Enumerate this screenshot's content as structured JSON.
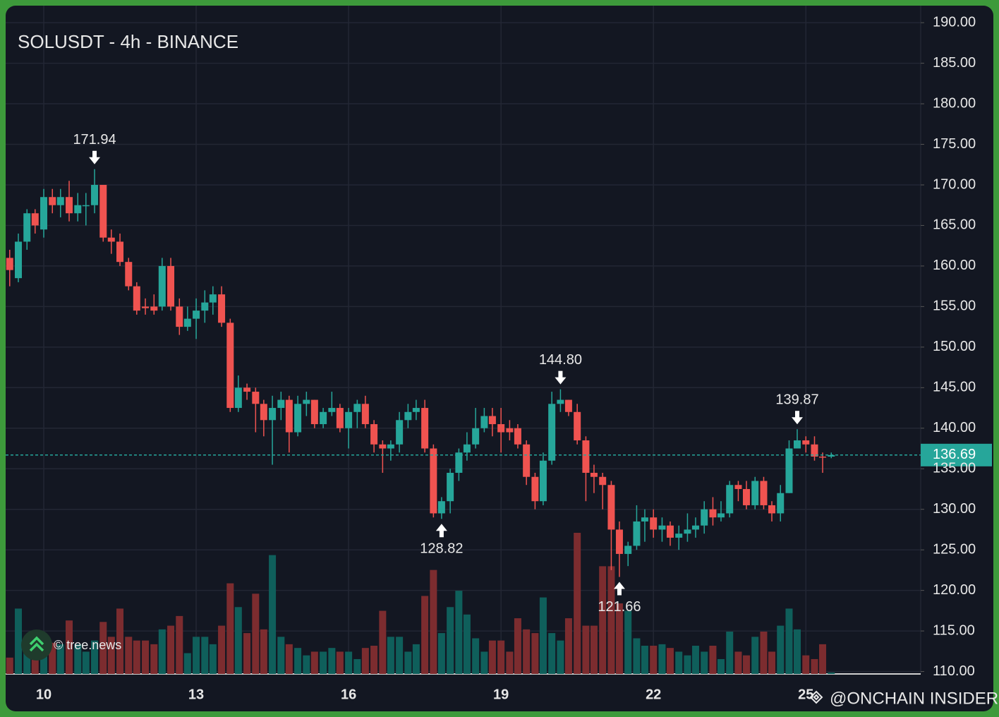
{
  "chart_data": {
    "type": "candlestick",
    "title": "SOLUSDT - 4h - BINANCE",
    "up_color": "#26a69a",
    "down_color": "#ef5350",
    "volume_up_color": "#0f5f5b",
    "volume_down_color": "#7c2c2f",
    "grid": true,
    "x": [
      9.33,
      9.5,
      9.67,
      9.83,
      10,
      10.17,
      10.33,
      10.5,
      10.67,
      10.83,
      11,
      11.17,
      11.33,
      11.5,
      11.67,
      11.83,
      12,
      12.17,
      12.33,
      12.5,
      12.67,
      12.83,
      13,
      13.17,
      13.33,
      13.5,
      13.67,
      13.83,
      14,
      14.17,
      14.33,
      14.5,
      14.67,
      14.83,
      15,
      15.17,
      15.33,
      15.5,
      15.67,
      15.83,
      16,
      16.17,
      16.33,
      16.5,
      16.67,
      16.83,
      17,
      17.17,
      17.33,
      17.5,
      17.67,
      17.83,
      18,
      18.17,
      18.33,
      18.5,
      18.67,
      18.83,
      19,
      19.17,
      19.33,
      19.5,
      19.67,
      19.83,
      20,
      20.17,
      20.33,
      20.5,
      20.67,
      20.83,
      21,
      21.17,
      21.33,
      21.5,
      21.67,
      21.83,
      22,
      22.17,
      22.33,
      22.5,
      22.67,
      22.83,
      23,
      23.17,
      23.33,
      23.5,
      23.67,
      23.83,
      24,
      24.17,
      24.33,
      24.5,
      24.67,
      24.83,
      25,
      25.17,
      25.33,
      25.5
    ],
    "open": [
      161,
      158.5,
      163,
      166.5,
      164.5,
      168.5,
      167.5,
      168.5,
      166.5,
      167.5,
      167.5,
      170,
      163.5,
      163,
      160.5,
      157.5,
      155,
      155,
      155,
      160,
      155,
      152.5,
      153.5,
      154.5,
      155.5,
      156.5,
      153,
      142.5,
      145,
      144.5,
      143,
      141,
      142.5,
      143.5,
      139.5,
      143,
      143.5,
      140.5,
      142,
      142.5,
      140,
      142,
      143,
      140.5,
      138,
      137.5,
      138,
      141,
      142,
      142.5,
      137.5,
      129.5,
      131,
      134.5,
      137,
      138,
      140,
      141.5,
      140.5,
      140,
      140,
      138,
      134,
      131,
      136,
      143,
      143.5,
      142,
      138.5,
      134.5,
      134,
      133,
      127.5,
      124.5,
      125.5,
      128.5,
      129,
      127.5,
      128,
      126.5,
      127,
      127.5,
      128,
      130,
      129,
      129.5,
      133,
      132.5,
      130.5,
      133.5,
      130.5,
      129.5,
      132,
      137.5,
      138.5,
      138,
      136.5,
      136.5
    ],
    "high": [
      162,
      164,
      167,
      167,
      169.5,
      169.5,
      169.5,
      170.5,
      169,
      169,
      171.94,
      170,
      164.5,
      164,
      161,
      158,
      156,
      156.5,
      161,
      161,
      156,
      155,
      156,
      157,
      157.5,
      157.5,
      153.5,
      146.5,
      145.5,
      145,
      143.5,
      144,
      144.5,
      144,
      144,
      144.5,
      143.5,
      142.5,
      144.5,
      143,
      142.5,
      143.5,
      144,
      141,
      138.5,
      138.5,
      142,
      143,
      143.5,
      143.5,
      138,
      131.5,
      135,
      137.5,
      139.5,
      142.5,
      142.5,
      142.5,
      142.5,
      141,
      140.5,
      138.5,
      134.5,
      137,
      144.5,
      144.8,
      143.5,
      143,
      139,
      135.5,
      134.5,
      133.5,
      128.5,
      126,
      130.5,
      130,
      130,
      129,
      128.5,
      128,
      129.5,
      129,
      131,
      131.5,
      131,
      133.5,
      133.5,
      133.5,
      134,
      134,
      131,
      133,
      138.5,
      139.87,
      139,
      139,
      137,
      137
    ],
    "low": [
      157.5,
      158,
      162,
      164,
      163.5,
      166.5,
      166,
      165.5,
      165.5,
      165,
      166.5,
      163,
      161.5,
      160,
      157,
      154,
      154,
      154,
      154.5,
      154.5,
      151.5,
      152,
      151,
      153,
      154,
      152.5,
      142,
      142,
      143.5,
      139.5,
      139,
      135.5,
      141,
      137,
      139,
      141.5,
      140,
      140,
      141.5,
      139.5,
      137.5,
      140,
      140,
      137,
      134.5,
      136,
      137,
      140,
      141,
      137,
      129,
      128.82,
      129.5,
      133.5,
      136,
      137.5,
      139.5,
      139,
      137,
      138.5,
      137.5,
      133,
      130,
      130.5,
      135.5,
      142,
      141.5,
      138,
      131,
      132,
      130,
      122.5,
      121.66,
      123,
      125,
      126,
      126.5,
      126,
      125.5,
      125,
      126,
      126.5,
      127,
      128,
      128.5,
      129,
      131,
      130,
      130,
      130,
      128.5,
      128.5,
      132,
      137.5,
      137,
      136,
      134.5,
      136.3
    ],
    "close": [
      159.5,
      163,
      166.5,
      165,
      168.5,
      167.5,
      168.5,
      166.5,
      167.5,
      167.5,
      170,
      163.5,
      163,
      160.5,
      157.5,
      154.5,
      154.8,
      154.5,
      160,
      155,
      152.5,
      153.5,
      154.5,
      155.5,
      156.5,
      153,
      142.5,
      145,
      144.5,
      143,
      141,
      142.5,
      143.5,
      139.5,
      143,
      143.5,
      140.5,
      142,
      142.5,
      140,
      142,
      143,
      140.5,
      138,
      137.5,
      138,
      141,
      142,
      142.5,
      137.5,
      129.5,
      131,
      134.5,
      137,
      138,
      140,
      141.5,
      140.5,
      139.5,
      139.5,
      138,
      134,
      131,
      136,
      143,
      143.5,
      142,
      138.5,
      134.5,
      134,
      133,
      127.5,
      124.5,
      125.5,
      128.5,
      129,
      127.5,
      128,
      126.5,
      127,
      127.5,
      128,
      130,
      129,
      129.5,
      133,
      132.5,
      130.5,
      133.5,
      130.5,
      129.5,
      132,
      137.5,
      138.5,
      138,
      136.5,
      136.4,
      136.69
    ],
    "volume": [
      22,
      88,
      45,
      35,
      40,
      42,
      40,
      72,
      40,
      30,
      45,
      70,
      50,
      88,
      50,
      45,
      45,
      40,
      60,
      65,
      78,
      28,
      50,
      50,
      40,
      65,
      122,
      90,
      55,
      108,
      60,
      160,
      50,
      40,
      35,
      25,
      30,
      30,
      35,
      30,
      30,
      20,
      35,
      38,
      85,
      50,
      50,
      30,
      40,
      105,
      140,
      55,
      90,
      112,
      80,
      48,
      30,
      45,
      45,
      30,
      75,
      60,
      55,
      103,
      55,
      45,
      75,
      190,
      65,
      65,
      145,
      145,
      95,
      85,
      48,
      38,
      38,
      40,
      35,
      30,
      25,
      38,
      30,
      38,
      20,
      57,
      30,
      25,
      50,
      57,
      30,
      65,
      88,
      60,
      25,
      20,
      40,
      2
    ],
    "xlim": [
      9.25,
      27.26
    ],
    "xticks": [
      10,
      13,
      16,
      19,
      22,
      25
    ],
    "ylim": [
      109.7,
      192.1
    ],
    "yticks": [
      {
        "value": 110,
        "label": "110.00"
      },
      {
        "value": 115,
        "label": "115.00"
      },
      {
        "value": 120,
        "label": "120.00"
      },
      {
        "value": 125,
        "label": "125.00"
      },
      {
        "value": 130,
        "label": "130.00"
      },
      {
        "value": 135,
        "label": "135.00"
      },
      {
        "value": 140,
        "label": "140.00"
      },
      {
        "value": 145,
        "label": "145.00"
      },
      {
        "value": 150,
        "label": "150.00"
      },
      {
        "value": 155,
        "label": "155.00"
      },
      {
        "value": 160,
        "label": "160.00"
      },
      {
        "value": 165,
        "label": "165.00"
      },
      {
        "value": 170,
        "label": "170.00"
      },
      {
        "value": 175,
        "label": "175.00"
      },
      {
        "value": 180,
        "label": "180.00"
      },
      {
        "value": 185,
        "label": "185.00"
      },
      {
        "value": 190,
        "label": "190.00"
      }
    ],
    "last_price": {
      "value": 136.69,
      "label": "136.69"
    },
    "annotations": [
      {
        "x": 11,
        "value": 171.94,
        "label": "171.94",
        "position": "above"
      },
      {
        "x": 17.83,
        "value": 128.82,
        "label": "128.82",
        "position": "below"
      },
      {
        "x": 20.17,
        "value": 144.8,
        "label": "144.80",
        "position": "above"
      },
      {
        "x": 21.33,
        "value": 121.66,
        "label": "121.66",
        "position": "below"
      },
      {
        "x": 24.83,
        "value": 139.87,
        "label": "139.87",
        "position": "above"
      }
    ],
    "watermarks": [
      "© tree.news",
      "@ONCHAIN INSIDER"
    ]
  }
}
